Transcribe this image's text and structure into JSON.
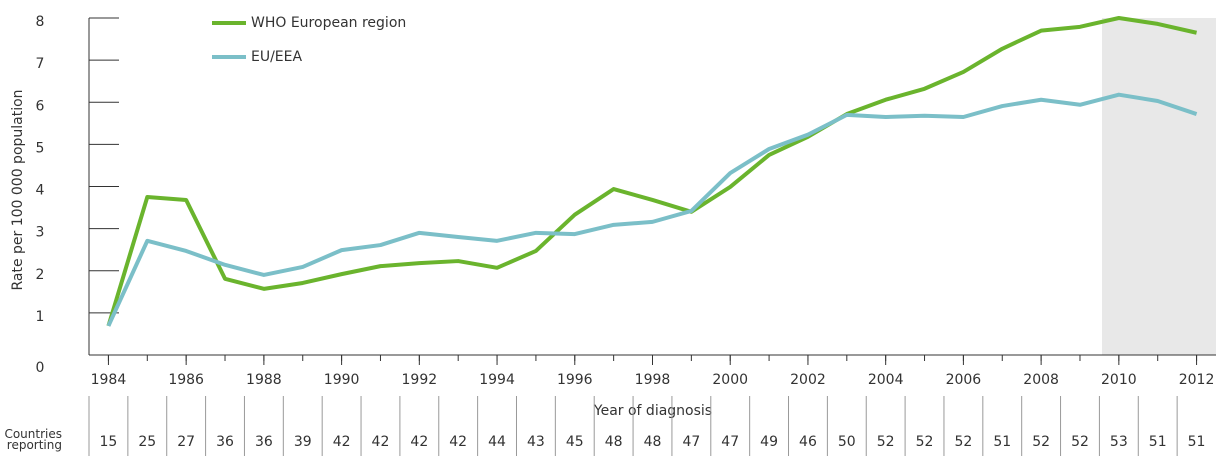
{
  "chart_data": {
    "type": "line",
    "y_label": "Rate per 100 000 population",
    "x_label": "Year of diagnosis",
    "x": [
      1984,
      1985,
      1986,
      1987,
      1988,
      1989,
      1990,
      1991,
      1992,
      1993,
      1994,
      1995,
      1996,
      1997,
      1998,
      1999,
      2000,
      2001,
      2002,
      2003,
      2004,
      2005,
      2006,
      2007,
      2008,
      2009,
      2010,
      2011,
      2012
    ],
    "series": [
      {
        "name": "WHO European region",
        "color": "#6ab42d",
        "values": [
          0.69,
          3.75,
          3.68,
          1.81,
          1.57,
          1.71,
          1.92,
          2.11,
          2.18,
          2.23,
          2.07,
          2.47,
          3.33,
          3.94,
          3.68,
          3.4,
          3.99,
          4.75,
          5.18,
          5.72,
          6.06,
          6.32,
          6.72,
          7.27,
          7.7,
          7.79,
          8.0,
          7.86,
          7.65
        ]
      },
      {
        "name": "EU/EEA",
        "color": "#7bbfc8",
        "values": [
          0.69,
          2.71,
          2.47,
          2.14,
          1.9,
          2.09,
          2.49,
          2.61,
          2.9,
          2.8,
          2.71,
          2.9,
          2.87,
          3.09,
          3.16,
          3.42,
          4.32,
          4.89,
          5.23,
          5.7,
          5.65,
          5.68,
          5.65,
          5.91,
          6.06,
          5.94,
          6.18,
          6.03,
          5.72
        ]
      }
    ],
    "xlim": [
      1983.5,
      2012.5
    ],
    "xticks": [
      1984,
      1986,
      1988,
      1990,
      1992,
      1994,
      1996,
      1998,
      2000,
      2002,
      2004,
      2006,
      2008,
      2010,
      2012
    ],
    "ylim": [
      0,
      8
    ],
    "yticks": [
      0,
      1,
      2,
      3,
      4,
      5,
      6,
      7,
      8
    ],
    "countries_reporting": {
      "label": "Countries reporting",
      "values": [
        15,
        25,
        27,
        36,
        36,
        39,
        42,
        42,
        42,
        42,
        44,
        43,
        45,
        48,
        48,
        47,
        47,
        49,
        46,
        50,
        52,
        52,
        52,
        51,
        52,
        52,
        53,
        51,
        51
      ]
    }
  }
}
